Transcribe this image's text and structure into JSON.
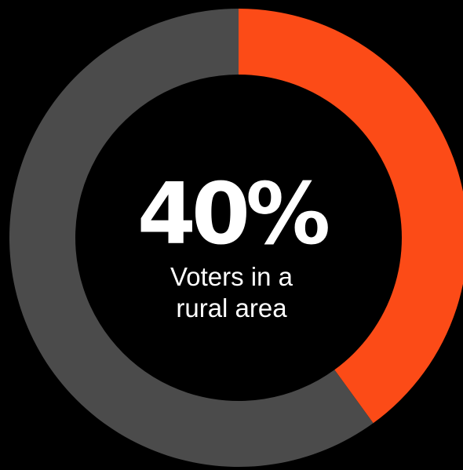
{
  "chart_data": {
    "type": "pie",
    "categories": [
      "Voters in a rural area",
      ""
    ],
    "values": [
      40,
      60
    ],
    "colors": [
      "#fc4b17",
      "#4b4b4b"
    ],
    "background": "#000000",
    "center_label": {
      "value": "40%",
      "caption_line_1": "Voters in a",
      "caption_line_2": "rural area"
    }
  }
}
